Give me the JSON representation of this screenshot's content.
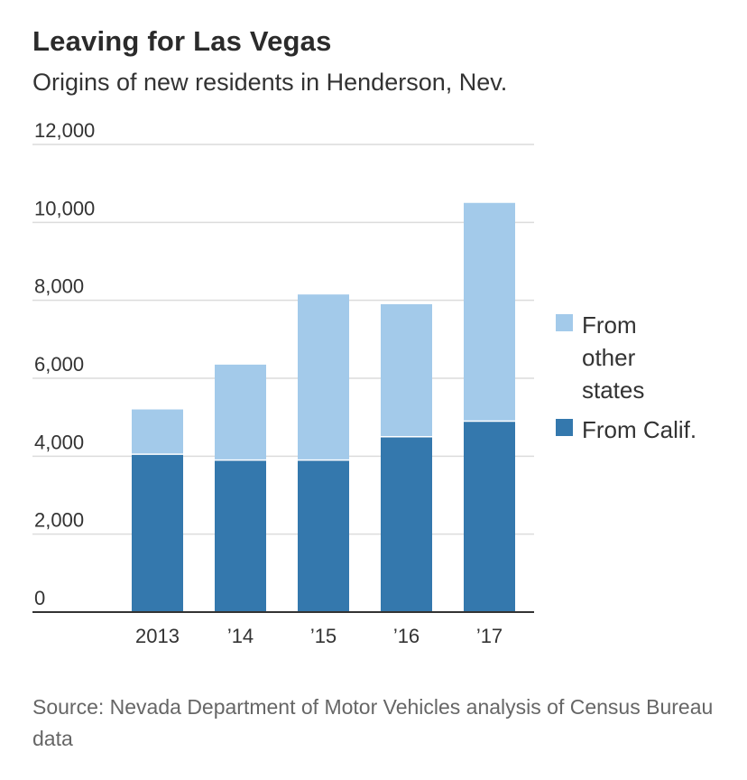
{
  "title": "Leaving for Las Vegas",
  "subtitle": "Origins of new residents in Henderson, Nev.",
  "source": "Source: Nevada Department of Motor Vehicles analysis of Census Bureau data",
  "chart_data": {
    "type": "bar",
    "stacked": true,
    "title": "Leaving for Las Vegas",
    "subtitle": "Origins of new residents in Henderson, Nev.",
    "categories": [
      "2013",
      "’14",
      "’15",
      "’16",
      "’17"
    ],
    "series": [
      {
        "name": "From Calif.",
        "values": [
          4050,
          3900,
          3900,
          4500,
          4900
        ],
        "color": "#3478ad"
      },
      {
        "name": "From other states",
        "values": [
          1150,
          2450,
          4250,
          3400,
          5600
        ],
        "color": "#a3caea"
      }
    ],
    "ylim": [
      0,
      12000
    ],
    "yticks": [
      0,
      2000,
      4000,
      6000,
      8000,
      10000,
      12000
    ],
    "ytick_labels": [
      "0",
      "2,000",
      "4,000",
      "6,000",
      "8,000",
      "10,000",
      "12,000"
    ],
    "grid": true,
    "legend": {
      "placement": "right",
      "items": [
        {
          "lines": [
            "From",
            "other",
            "states"
          ],
          "color": "#a3caea"
        },
        {
          "lines": [
            "From Calif."
          ],
          "color": "#3478ad"
        }
      ]
    },
    "xlabel": "",
    "ylabel": ""
  }
}
